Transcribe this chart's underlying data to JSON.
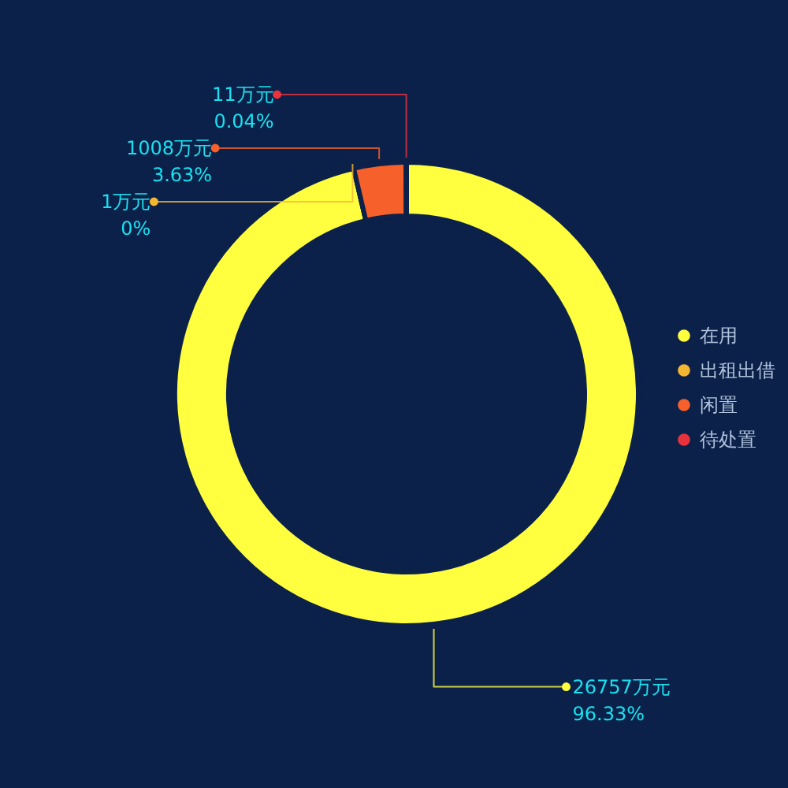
{
  "chart_data": {
    "type": "donut",
    "categories": [
      "在用",
      "出租出借",
      "闲置",
      "待处置"
    ],
    "values": [
      26757,
      1,
      1008,
      11
    ],
    "colors": [
      "#ffff40",
      "#f5b731",
      "#f6602a",
      "#e8323c"
    ],
    "value_labels": [
      "26757万元\n96.33%",
      "1万元\n0%",
      "1008万元\n3.63%",
      "11万元\n0.04%"
    ],
    "legend": "right"
  }
}
